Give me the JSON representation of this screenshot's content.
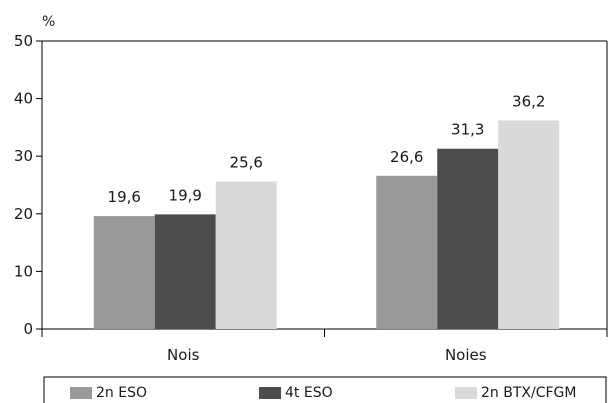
{
  "chart_data": {
    "type": "bar",
    "unit_label": "%",
    "categories": [
      "Nois",
      "Noies"
    ],
    "series": [
      {
        "name": "2n ESO",
        "values": [
          19.6,
          26.6
        ],
        "labels": [
          "19,6",
          "26,6"
        ],
        "color": "#999999"
      },
      {
        "name": "4t ESO",
        "values": [
          19.9,
          31.3
        ],
        "labels": [
          "19,9",
          "31,3"
        ],
        "color": "#4d4d4d"
      },
      {
        "name": "2n BTX/CFGM",
        "values": [
          25.6,
          36.2
        ],
        "labels": [
          "25,6",
          "36,2"
        ],
        "color": "#d9d9d9"
      }
    ],
    "ylim": [
      0,
      50
    ],
    "yticks": [
      0,
      10,
      20,
      30,
      40,
      50
    ],
    "grid": false,
    "legend_position": "bottom"
  }
}
